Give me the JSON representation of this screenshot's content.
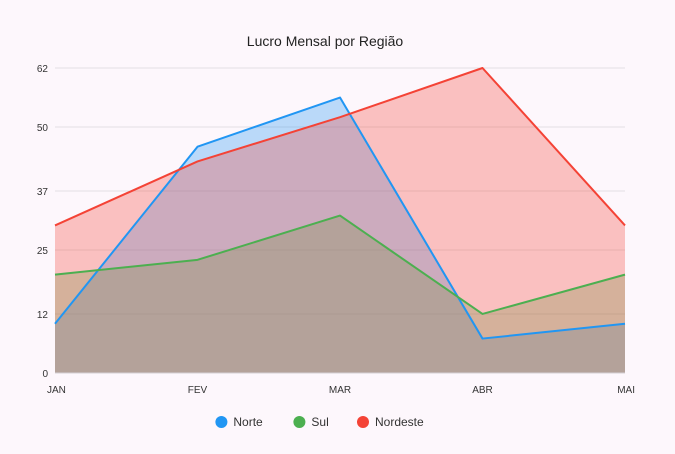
{
  "chart_data": {
    "type": "area",
    "title": "Lucro Mensal por Região",
    "xlabel": "",
    "ylabel": "",
    "categories": [
      "JAN",
      "FEV",
      "MAR",
      "ABR",
      "MAI"
    ],
    "y_ticks": [
      "0",
      "12",
      "25",
      "37",
      "50",
      "62"
    ],
    "ylim": [
      0,
      62
    ],
    "grid": true,
    "legend_position": "bottom",
    "series": [
      {
        "name": "Norte",
        "color": "#2196f3",
        "values": [
          10,
          46,
          56,
          7,
          10
        ]
      },
      {
        "name": "Sul",
        "color": "#4caf50",
        "values": [
          20,
          23,
          32,
          12,
          20
        ]
      },
      {
        "name": "Nordeste",
        "color": "#f44336",
        "values": [
          30,
          43,
          52,
          62,
          30
        ]
      }
    ]
  }
}
